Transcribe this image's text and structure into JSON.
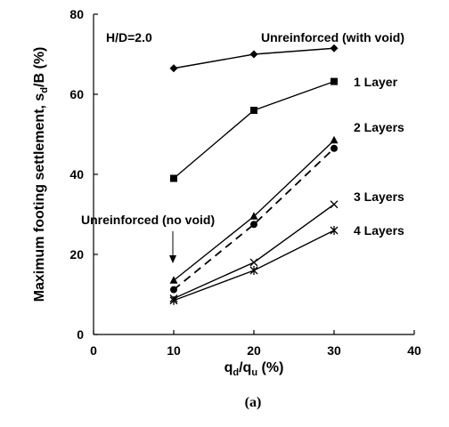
{
  "chart_data": {
    "type": "line",
    "annotation": "H/D=2.0",
    "ylabel": "Maximum footing settlement, s_d/B (%)",
    "xlabel": "q_d/q_u (%)",
    "caption": "(a)",
    "xlim": [
      0,
      40
    ],
    "ylim": [
      0,
      80
    ],
    "xticks": [
      0,
      10,
      20,
      30,
      40
    ],
    "yticks": [
      0,
      20,
      40,
      60,
      80
    ],
    "grid": false,
    "x": [
      10,
      20,
      30
    ],
    "series": [
      {
        "name": "Unreinforced (with void)",
        "values": [
          66.5,
          70,
          71.5
        ],
        "marker": "diamond",
        "dash": false
      },
      {
        "name": "1 Layer",
        "values": [
          39,
          56,
          63.2
        ],
        "marker": "square",
        "dash": false
      },
      {
        "name": "2 Layers",
        "values": [
          13.5,
          29.5,
          48.5
        ],
        "marker": "triangle",
        "dash": false
      },
      {
        "name": "Unreinforced (no void)",
        "values": [
          11.2,
          27.5,
          46.5
        ],
        "marker": "circle",
        "dash": true
      },
      {
        "name": "3 Layers",
        "values": [
          9,
          18,
          32.5
        ],
        "marker": "x",
        "dash": false
      },
      {
        "name": "4 Layers",
        "values": [
          8.5,
          16,
          26
        ],
        "marker": "star",
        "dash": false
      }
    ]
  }
}
